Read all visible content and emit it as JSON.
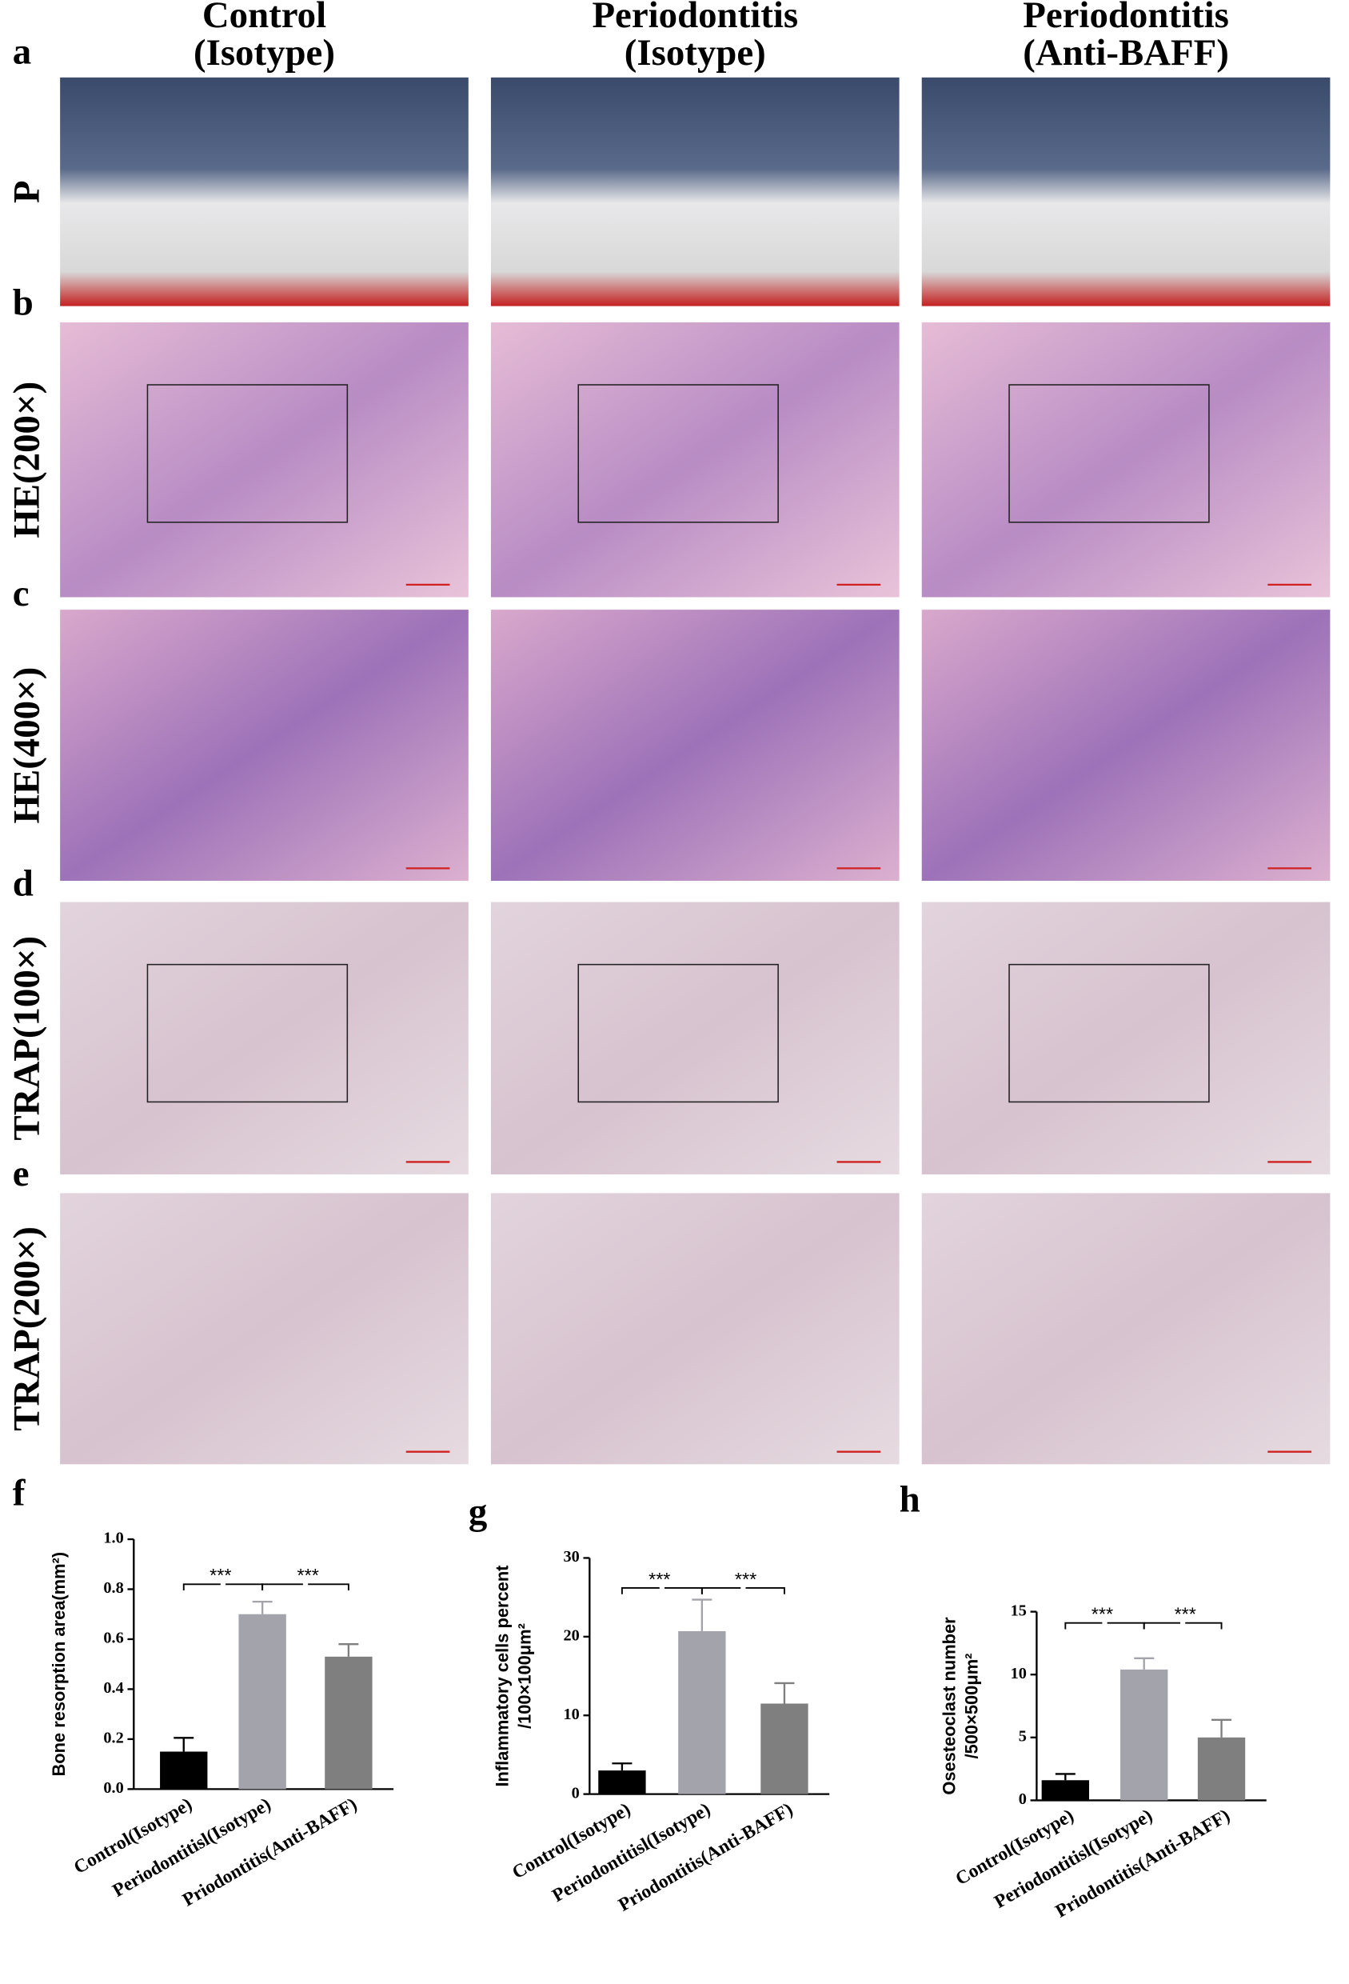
{
  "figure": {
    "panel_letters": [
      "a",
      "b",
      "c",
      "d",
      "e",
      "f",
      "g",
      "h"
    ],
    "columns": [
      [
        "Control",
        "(Isotype)"
      ],
      [
        "Periodontitis",
        "(Isotype)"
      ],
      [
        "Periodontitis",
        "(Anti-BAFF)"
      ]
    ],
    "rows": [
      "P",
      "HE(200×)",
      "HE(400×)",
      "TRAP(100×)",
      "TRAP(200×)"
    ]
  },
  "chart_data": [
    {
      "type": "bar",
      "ylabel": [
        "Bone resorption area(mm²)"
      ],
      "categories": [
        "Control(Isotype)",
        "Periodontitisl(Isotype)",
        "Priodontitis(Anti-BAFF)"
      ],
      "values": [
        0.15,
        0.7,
        0.53
      ],
      "errors": [
        0.055,
        0.05,
        0.05
      ],
      "colors": [
        "#000000",
        "#a3a3ab",
        "#7f7f7f"
      ],
      "ylim": [
        0,
        1.0
      ],
      "yticks": [
        {
          "value": 0,
          "label": "0.0"
        },
        0.2,
        0.4,
        0.6,
        0.8,
        {
          "value": 1.0,
          "label": "1.0"
        }
      ],
      "annotations": [
        "***",
        "***"
      ]
    },
    {
      "type": "bar",
      "ylabel": [
        "Inflammatory cells percent",
        "/100×100μm²"
      ],
      "categories": [
        "Control(Isotype)",
        "Periodontitisl(Isotype)",
        "Priodontitis(Anti-BAFF)"
      ],
      "values": [
        3,
        20.7,
        11.5
      ],
      "errors": [
        0.9,
        4,
        2.6
      ],
      "colors": [
        "#000000",
        "#a3a3ab",
        "#7f7f7f"
      ],
      "ylim": [
        0,
        30
      ],
      "yticks": [
        0,
        10,
        20,
        30
      ],
      "annotations": [
        "***",
        "***"
      ]
    },
    {
      "type": "bar",
      "ylabel": [
        "Osesteoclast number",
        "/500×500μm²"
      ],
      "categories": [
        "Control(Isotype)",
        "Periodontitisl(Isotype)",
        "Priodontitis(Anti-BAFF)"
      ],
      "values": [
        1.6,
        10.4,
        5.0
      ],
      "errors": [
        0.5,
        0.9,
        1.4
      ],
      "colors": [
        "#000000",
        "#a3a3ab",
        "#7f7f7f"
      ],
      "ylim": [
        0,
        15
      ],
      "yticks": [
        0,
        5,
        10,
        15
      ],
      "annotations": [
        "***",
        "***"
      ]
    }
  ]
}
